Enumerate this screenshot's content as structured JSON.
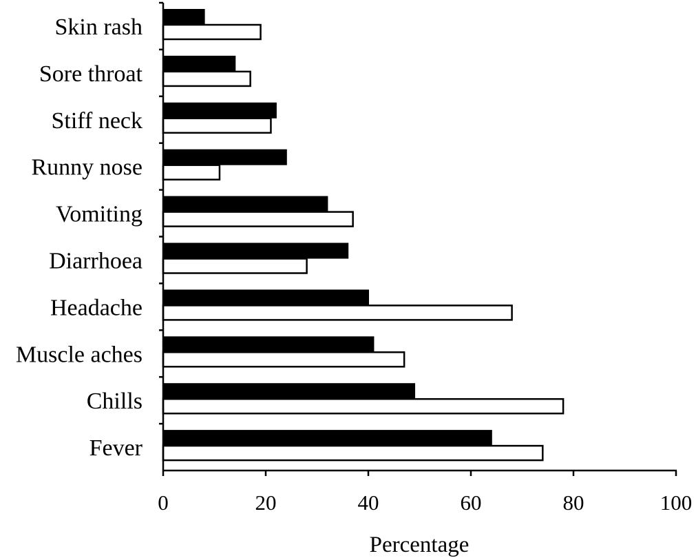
{
  "chart_data": {
    "type": "bar",
    "orientation": "horizontal",
    "categories": [
      "Fever",
      "Chills",
      "Muscle aches",
      "Headache",
      "Diarrhoea",
      "Vomiting",
      "Runny nose",
      "Stiff neck",
      "Sore throat",
      "Skin rash"
    ],
    "series": [
      {
        "values": [
          64,
          49,
          41,
          40,
          36,
          32,
          24,
          22,
          14,
          8
        ],
        "color": "#000000"
      },
      {
        "values": [
          74,
          78,
          47,
          68,
          28,
          37,
          11,
          21,
          17,
          19
        ],
        "color": "#ffffff"
      }
    ],
    "title": "",
    "xlabel": "Percentage",
    "ylabel": "",
    "xlim": [
      0,
      100
    ],
    "xticks": [
      "0",
      "20",
      "40",
      "60",
      "80",
      "100"
    ],
    "grid": false,
    "legend": "none"
  }
}
